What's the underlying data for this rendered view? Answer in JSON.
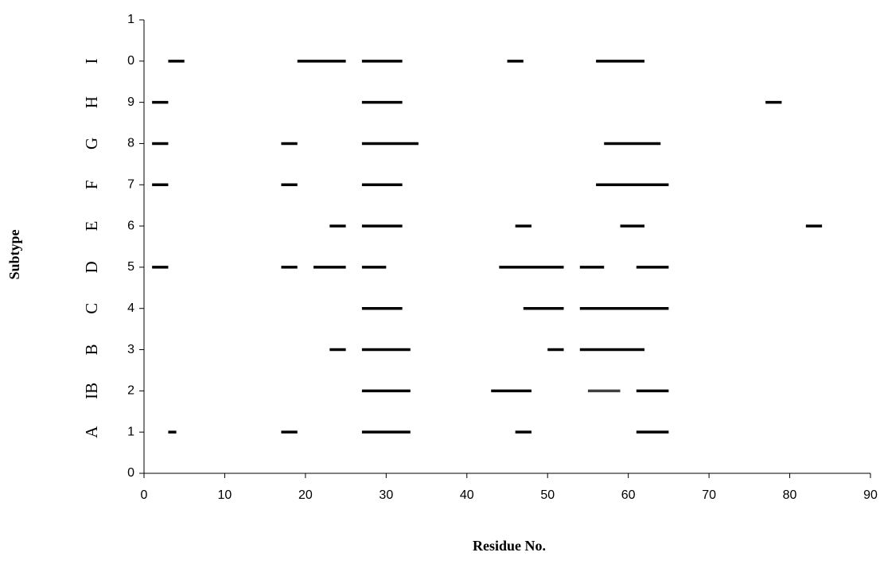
{
  "chart_data": {
    "type": "segment",
    "x_label": "Residue No.",
    "y_label": "Subtype",
    "xlim": [
      0,
      90
    ],
    "xticks": [
      0,
      10,
      20,
      30,
      40,
      50,
      60,
      70,
      80,
      90
    ],
    "ylim": [
      0,
      11
    ],
    "yticks": [
      0,
      1,
      2,
      3,
      4,
      5,
      6,
      7,
      8,
      9,
      {
        "value": 10,
        "label": "0"
      },
      {
        "value": 11,
        "label": "1"
      }
    ],
    "color": "#000000",
    "series": [
      {
        "name": "A",
        "y": 1,
        "segments": [
          {
            "start": 3,
            "end": 4
          },
          {
            "start": 17,
            "end": 19
          },
          {
            "start": 27,
            "end": 33
          },
          {
            "start": 46,
            "end": 48
          },
          {
            "start": 61,
            "end": 65
          }
        ]
      },
      {
        "name": "IB",
        "y": 2,
        "segments": [
          {
            "start": 27,
            "end": 33
          },
          {
            "start": 43,
            "end": 48
          },
          {
            "start": 55,
            "end": 59,
            "color": "#404040"
          },
          {
            "start": 61,
            "end": 65
          }
        ]
      },
      {
        "name": "B",
        "y": 3,
        "segments": [
          {
            "start": 23,
            "end": 25
          },
          {
            "start": 27,
            "end": 33
          },
          {
            "start": 50,
            "end": 52
          },
          {
            "start": 54,
            "end": 62
          }
        ]
      },
      {
        "name": "C",
        "y": 4,
        "segments": [
          {
            "start": 27,
            "end": 32
          },
          {
            "start": 47,
            "end": 52
          },
          {
            "start": 54,
            "end": 65
          }
        ]
      },
      {
        "name": "D",
        "y": 5,
        "segments": [
          {
            "start": 1,
            "end": 3
          },
          {
            "start": 17,
            "end": 19
          },
          {
            "start": 21,
            "end": 25
          },
          {
            "start": 27,
            "end": 30
          },
          {
            "start": 44,
            "end": 52
          },
          {
            "start": 54,
            "end": 57
          },
          {
            "start": 61,
            "end": 65
          }
        ]
      },
      {
        "name": "E",
        "y": 6,
        "segments": [
          {
            "start": 23,
            "end": 25
          },
          {
            "start": 27,
            "end": 32
          },
          {
            "start": 46,
            "end": 48
          },
          {
            "start": 59,
            "end": 62
          },
          {
            "start": 82,
            "end": 84
          }
        ]
      },
      {
        "name": "F",
        "y": 7,
        "segments": [
          {
            "start": 1,
            "end": 3
          },
          {
            "start": 17,
            "end": 19
          },
          {
            "start": 27,
            "end": 32
          },
          {
            "start": 56,
            "end": 65
          }
        ]
      },
      {
        "name": "G",
        "y": 8,
        "segments": [
          {
            "start": 1,
            "end": 3
          },
          {
            "start": 17,
            "end": 19
          },
          {
            "start": 27,
            "end": 34
          },
          {
            "start": 57,
            "end": 64
          }
        ]
      },
      {
        "name": "H",
        "y": 9,
        "segments": [
          {
            "start": 1,
            "end": 3
          },
          {
            "start": 27,
            "end": 32
          },
          {
            "start": 77,
            "end": 79
          }
        ]
      },
      {
        "name": "I",
        "y": 10,
        "segments": [
          {
            "start": 3,
            "end": 5
          },
          {
            "start": 19,
            "end": 25
          },
          {
            "start": 27,
            "end": 32
          },
          {
            "start": 45,
            "end": 47
          },
          {
            "start": 56,
            "end": 62
          }
        ]
      }
    ]
  }
}
